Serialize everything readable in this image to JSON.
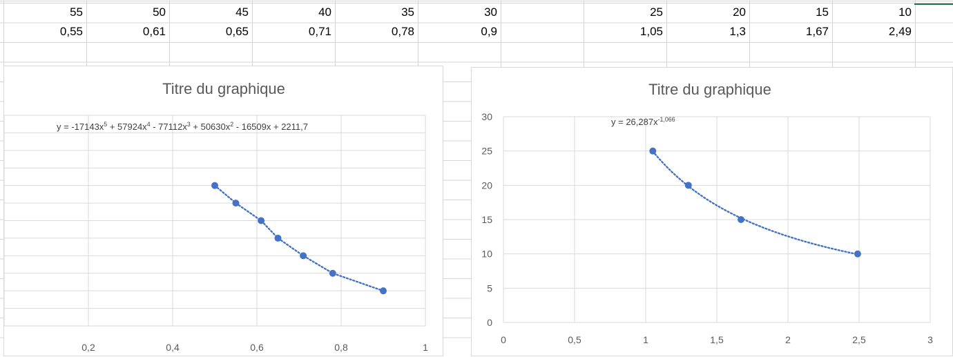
{
  "sheet": {
    "row1": [
      {
        "col": 0,
        "value": "55"
      },
      {
        "col": 1,
        "value": "50"
      },
      {
        "col": 2,
        "value": "45"
      },
      {
        "col": 3,
        "value": "40"
      },
      {
        "col": 4,
        "value": "35"
      },
      {
        "col": 5,
        "value": "30"
      },
      {
        "col": 7,
        "value": "25"
      },
      {
        "col": 8,
        "value": "20"
      },
      {
        "col": 9,
        "value": "15"
      },
      {
        "col": 10,
        "value": "10"
      }
    ],
    "row2": [
      {
        "col": 0,
        "value": "0,55"
      },
      {
        "col": 1,
        "value": "0,61"
      },
      {
        "col": 2,
        "value": "0,65"
      },
      {
        "col": 3,
        "value": "0,71"
      },
      {
        "col": 4,
        "value": "0,78"
      },
      {
        "col": 5,
        "value": "0,9"
      },
      {
        "col": 7,
        "value": "1,05"
      },
      {
        "col": 8,
        "value": "1,3"
      },
      {
        "col": 9,
        "value": "1,67"
      },
      {
        "col": 10,
        "value": "2,49"
      }
    ]
  },
  "colors": {
    "marker": "#4472c4",
    "trend": "#4472c4",
    "gridline": "#d9d9d9",
    "title": "#595959",
    "tick": "#595959",
    "cell_grid": "#d4d4d4",
    "selection": "#217346"
  },
  "chart_data": [
    {
      "type": "scatter",
      "title": "Titre du graphique",
      "trendline_label": "y = -17143x5 + 57924x4 - 77112x3 + 50630x2 - 16509x + 2211,7",
      "trendline_type": "polynomial",
      "trendline_coefficients": [
        -17143,
        57924,
        -77112,
        50630,
        -16509,
        2211.7
      ],
      "x_tick_labels": [
        "0,2",
        "0,4",
        "0,6",
        "0,8",
        "1"
      ],
      "y_tick_labels_visible": false,
      "grid": true,
      "series": [
        {
          "x": [
            0.5,
            0.55,
            0.61,
            0.65,
            0.71,
            0.78,
            0.9
          ],
          "y": [
            60,
            55,
            50,
            45,
            40,
            35,
            30
          ]
        }
      ]
    },
    {
      "type": "scatter",
      "title": "Titre du graphique",
      "trendline_label": "y = 26,287x-1,066",
      "trendline_type": "power",
      "trendline_coefficients": [
        26.287,
        -1.066
      ],
      "xlim": [
        0,
        3
      ],
      "ylim": [
        0,
        30
      ],
      "x_tick_labels": [
        "0",
        "0,5",
        "1",
        "1,5",
        "2",
        "2,5",
        "3"
      ],
      "y_tick_labels": [
        "0",
        "5",
        "10",
        "15",
        "20",
        "25",
        "30"
      ],
      "grid": true,
      "series": [
        {
          "x": [
            1.05,
            1.3,
            1.67,
            2.49
          ],
          "y": [
            25,
            20,
            15,
            10
          ]
        }
      ]
    }
  ]
}
